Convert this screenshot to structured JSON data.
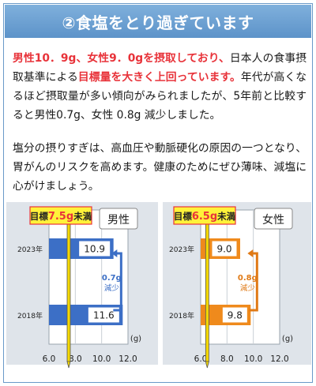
{
  "title": "②食塩をとり過ぎています",
  "paragraph1": {
    "highlight1": "男性10．9g、女性9．0gを摂取しており、",
    "text1": "日本人の食事摂取基準による",
    "highlight2": "目標量を大きく上回っています。",
    "text2": "年代が高くなるほど摂取量が多い傾向がみられましたが、5年前と比較すると男性0.7g、女性 0.8g 減少しました。"
  },
  "paragraph2": "塩分の摂りすぎは、高血圧や動脈硬化の原因の一つとなり、胃がんのリスクを高めます。健康のためにぜひ薄味、減塩に心がけましょう。",
  "chart_data": [
    {
      "type": "bar",
      "orientation": "horizontal",
      "gender_label": "男性",
      "categories": [
        "2023年",
        "2018年"
      ],
      "values": [
        10.9,
        11.6
      ],
      "value_labels": [
        "10.9",
        "11.6"
      ],
      "target_label": "目標7.5g未満",
      "target_value": 7.5,
      "change_label": [
        "0.7g",
        "減少"
      ],
      "unit": "(g)",
      "xlim": [
        6.0,
        12.0
      ],
      "xticks": [
        "6.0",
        "8.0",
        "10.0",
        "12.0"
      ],
      "bar_color": "#3c6fc6",
      "change_color": "#3c6fc6"
    },
    {
      "type": "bar",
      "orientation": "horizontal",
      "gender_label": "女性",
      "categories": [
        "2023年",
        "2018年"
      ],
      "values": [
        9.0,
        9.8
      ],
      "value_labels": [
        "9.0",
        "9.8"
      ],
      "target_label": "目標6.5g未満",
      "target_value": 6.5,
      "change_label": [
        "0.8g",
        "減少"
      ],
      "unit": "(g)",
      "xlim": [
        6.0,
        12.0
      ],
      "xticks": [
        "6.0",
        "8.0",
        "10.0",
        "12.0"
      ],
      "bar_color": "#ef8a1c",
      "change_color": "#e07a16"
    }
  ]
}
